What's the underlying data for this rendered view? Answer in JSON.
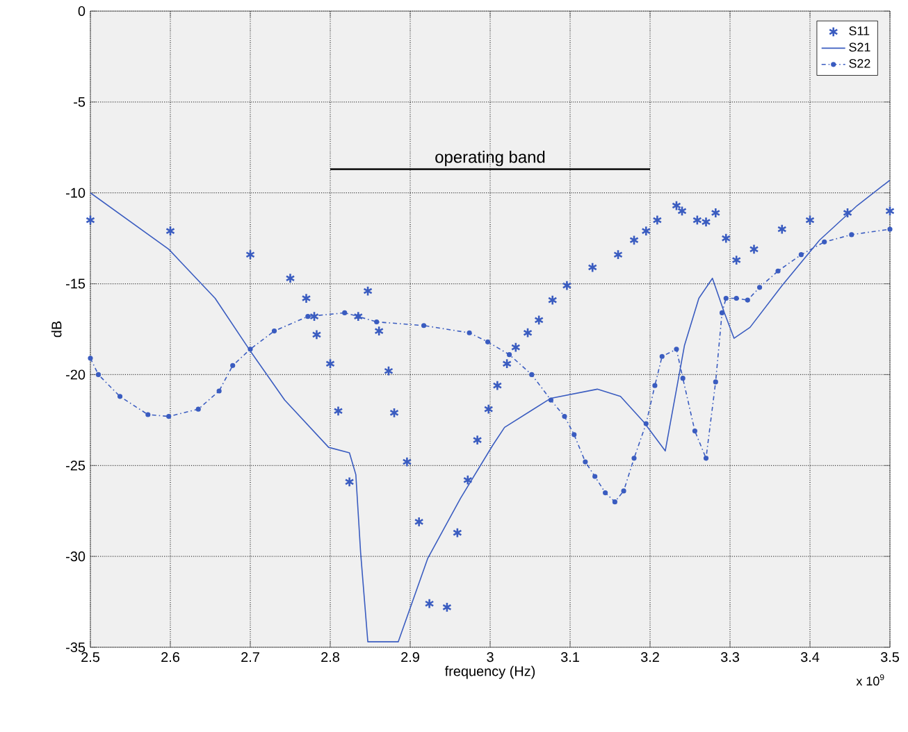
{
  "chart_data": {
    "type": "line",
    "xlabel": "frequency (Hz)",
    "ylabel": "dB",
    "xlim": [
      2.5,
      3.5
    ],
    "ylim": [
      -35,
      0
    ],
    "xticks": [
      2.5,
      2.6,
      2.7,
      2.8,
      2.9,
      3,
      3.1,
      3.2,
      3.3,
      3.4,
      3.5
    ],
    "yticks": [
      -35,
      -30,
      -25,
      -20,
      -15,
      -10,
      -5,
      0
    ],
    "grid": true,
    "legend": "top right",
    "annotations": [
      "x 10$^{9}$",
      {
        "text": "operating band",
        "x": 3.0,
        "y": -8.7
      }
    ],
    "series": [
      {
        "color": "#1a1a1a",
        "marker": "none",
        "line_style": "solid",
        "x": [
          2.8,
          3.2
        ],
        "values": [
          -8.7,
          -8.7
        ]
      },
      {
        "name": "S11",
        "type": "scatter",
        "marker": "cross",
        "color": "#3a5cc0",
        "x": [
          2.5,
          2.6,
          2.7,
          2.75,
          2.77,
          2.78,
          2.783,
          2.8,
          2.81,
          2.824,
          2.835,
          2.847,
          2.861,
          2.873,
          2.88,
          2.896,
          2.911,
          2.924,
          2.946,
          2.959,
          2.972,
          2.984,
          2.998,
          3.009,
          3.021,
          3.032,
          3.047,
          3.061,
          3.078,
          3.096,
          3.128,
          3.16,
          3.18,
          3.195,
          3.209,
          3.233,
          3.24,
          3.259,
          3.27,
          3.282,
          3.295,
          3.308,
          3.33,
          3.365,
          3.4,
          3.447,
          3.5
        ],
        "values": [
          -11.5,
          -12.1,
          -13.4,
          -14.7,
          -15.8,
          -16.8,
          -17.8,
          -19.4,
          -22.0,
          -25.9,
          -16.8,
          -15.4,
          -17.6,
          -19.8,
          -22.1,
          -24.8,
          -28.1,
          -32.6,
          -32.8,
          -28.7,
          -25.8,
          -23.6,
          -21.9,
          -20.6,
          -19.4,
          -18.5,
          -17.7,
          -17.0,
          -15.9,
          -15.1,
          -14.1,
          -13.4,
          -12.6,
          -12.1,
          -11.5,
          -10.7,
          -11.0,
          -11.5,
          -11.6,
          -11.1,
          -12.5,
          -13.7,
          -13.1,
          -12.0,
          -11.5,
          -11.1,
          -11.0
        ]
      },
      {
        "name": "S21",
        "marker": "none",
        "line_style": "solid",
        "color": "#3a5cc0",
        "x": [
          2.5,
          2.598,
          2.656,
          2.7,
          2.743,
          2.798,
          2.824,
          2.832,
          2.838,
          2.847,
          2.885,
          2.922,
          2.963,
          3.003,
          3.018,
          3.076,
          3.134,
          3.163,
          3.192,
          3.219,
          3.243,
          3.261,
          3.278,
          3.293,
          3.305,
          3.325,
          3.365,
          3.412,
          3.459,
          3.5
        ],
        "values": [
          -10,
          -13.1,
          -15.8,
          -18.7,
          -21.4,
          -24.0,
          -24.3,
          -25.5,
          -29.8,
          -34.7,
          -34.7,
          -30.1,
          -26.8,
          -23.9,
          -22.9,
          -21.3,
          -20.8,
          -21.2,
          -22.6,
          -24.2,
          -18.4,
          -15.8,
          -14.7,
          -16.6,
          -18.0,
          -17.4,
          -15.1,
          -12.6,
          -10.7,
          -9.3
        ]
      },
      {
        "name": "S22",
        "type": "line",
        "marker": "circle",
        "line_style": "dashed",
        "color": "#3a5cc0",
        "x": [
          2.5,
          2.51,
          2.537,
          2.572,
          2.598,
          2.635,
          2.661,
          2.678,
          2.7,
          2.73,
          2.772,
          2.818,
          2.835,
          2.858,
          2.917,
          2.974,
          2.997,
          3.024,
          3.052,
          3.076,
          3.093,
          3.105,
          3.119,
          3.131,
          3.144,
          3.156,
          3.167,
          3.18,
          3.195,
          3.206,
          3.215,
          3.233,
          3.241,
          3.256,
          3.27,
          3.282,
          3.29,
          3.295,
          3.308,
          3.322,
          3.337,
          3.36,
          3.389,
          3.418,
          3.452,
          3.5
        ],
        "values": [
          -19.1,
          -20.0,
          -21.2,
          -22.2,
          -22.3,
          -21.9,
          -20.9,
          -19.5,
          -18.6,
          -17.6,
          -16.8,
          -16.6,
          -16.8,
          -17.1,
          -17.3,
          -17.7,
          -18.2,
          -18.9,
          -20.0,
          -21.4,
          -22.3,
          -23.3,
          -24.8,
          -25.6,
          -26.5,
          -27.0,
          -26.4,
          -24.6,
          -22.7,
          -20.6,
          -19.0,
          -18.6,
          -20.2,
          -23.1,
          -24.6,
          -20.4,
          -16.6,
          -15.8,
          -15.8,
          -15.9,
          -15.2,
          -14.3,
          -13.4,
          -12.7,
          -12.3,
          -12.0
        ]
      }
    ]
  }
}
